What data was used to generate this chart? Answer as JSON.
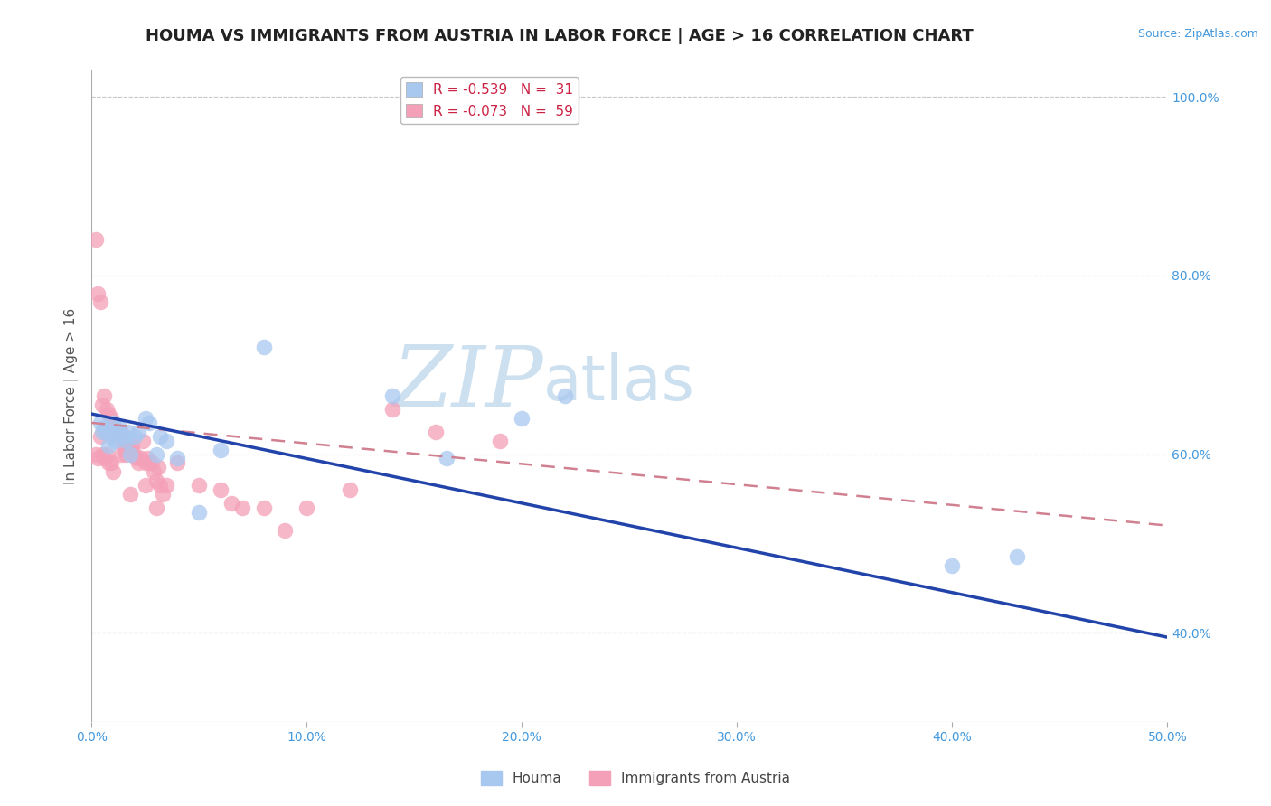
{
  "title": "HOUMA VS IMMIGRANTS FROM AUSTRIA IN LABOR FORCE | AGE > 16 CORRELATION CHART",
  "source_text": "Source: ZipAtlas.com",
  "ylabel": "In Labor Force | Age > 16",
  "xlim": [
    0.0,
    0.5
  ],
  "ylim": [
    0.3,
    1.03
  ],
  "xtick_labels": [
    "0.0%",
    "",
    "",
    "",
    "",
    "50.0%"
  ],
  "xtick_vals": [
    0.0,
    0.1,
    0.2,
    0.3,
    0.4,
    0.5
  ],
  "ytick_labels": [
    "40.0%",
    "60.0%",
    "80.0%",
    "100.0%"
  ],
  "ytick_vals": [
    0.4,
    0.6,
    0.8,
    1.0
  ],
  "grid_color": "#c8c8c8",
  "background_color": "#ffffff",
  "houma_color": "#a8c8f0",
  "austria_color": "#f4a0b8",
  "houma_line_color": "#2244aa",
  "austria_line_color": "#d08090",
  "legend_label_houma": "R = -0.539   N =  31",
  "legend_label_austria": "R = -0.073   N =  59",
  "bottom_legend_houma": "Houma",
  "bottom_legend_austria": "Immigrants from Austria",
  "houma_x": [
    0.004,
    0.005,
    0.006,
    0.007,
    0.008,
    0.009,
    0.01,
    0.011,
    0.012,
    0.013,
    0.015,
    0.016,
    0.017,
    0.018,
    0.02,
    0.022,
    0.025,
    0.027,
    0.03,
    0.032,
    0.035,
    0.04,
    0.05,
    0.06,
    0.08,
    0.14,
    0.165,
    0.2,
    0.22,
    0.4,
    0.43
  ],
  "houma_y": [
    0.635,
    0.625,
    0.63,
    0.625,
    0.61,
    0.62,
    0.635,
    0.615,
    0.625,
    0.63,
    0.62,
    0.615,
    0.625,
    0.6,
    0.62,
    0.625,
    0.64,
    0.635,
    0.6,
    0.62,
    0.615,
    0.595,
    0.535,
    0.605,
    0.72,
    0.665,
    0.595,
    0.64,
    0.665,
    0.475,
    0.485
  ],
  "austria_x": [
    0.002,
    0.003,
    0.004,
    0.005,
    0.006,
    0.007,
    0.008,
    0.009,
    0.01,
    0.011,
    0.012,
    0.013,
    0.014,
    0.015,
    0.016,
    0.017,
    0.018,
    0.019,
    0.02,
    0.021,
    0.022,
    0.023,
    0.024,
    0.025,
    0.026,
    0.027,
    0.028,
    0.029,
    0.03,
    0.031,
    0.032,
    0.033,
    0.035,
    0.04,
    0.05,
    0.06,
    0.065,
    0.07,
    0.08,
    0.09,
    0.1,
    0.12,
    0.14,
    0.16,
    0.19,
    0.002,
    0.003,
    0.004,
    0.005,
    0.006,
    0.007,
    0.008,
    0.009,
    0.01,
    0.014,
    0.016,
    0.018,
    0.025,
    0.03
  ],
  "austria_y": [
    0.84,
    0.78,
    0.77,
    0.655,
    0.665,
    0.65,
    0.645,
    0.64,
    0.63,
    0.625,
    0.62,
    0.625,
    0.625,
    0.61,
    0.6,
    0.61,
    0.605,
    0.61,
    0.6,
    0.595,
    0.59,
    0.595,
    0.615,
    0.59,
    0.595,
    0.59,
    0.59,
    0.58,
    0.57,
    0.585,
    0.565,
    0.555,
    0.565,
    0.59,
    0.565,
    0.56,
    0.545,
    0.54,
    0.54,
    0.515,
    0.54,
    0.56,
    0.65,
    0.625,
    0.615,
    0.6,
    0.595,
    0.62,
    0.6,
    0.595,
    0.6,
    0.59,
    0.59,
    0.58,
    0.6,
    0.605,
    0.555,
    0.565,
    0.54
  ],
  "houma_trend_x": [
    0.0,
    0.5
  ],
  "houma_trend_y": [
    0.645,
    0.395
  ],
  "austria_trend_x": [
    0.0,
    0.5
  ],
  "austria_trend_y": [
    0.635,
    0.52
  ],
  "watermark_line1": "ZIP",
  "watermark_line2": "atlas",
  "watermark_color": "#cce0f0",
  "title_fontsize": 13,
  "axis_label_fontsize": 11,
  "tick_fontsize": 10,
  "legend_fontsize": 11,
  "source_fontsize": 9
}
